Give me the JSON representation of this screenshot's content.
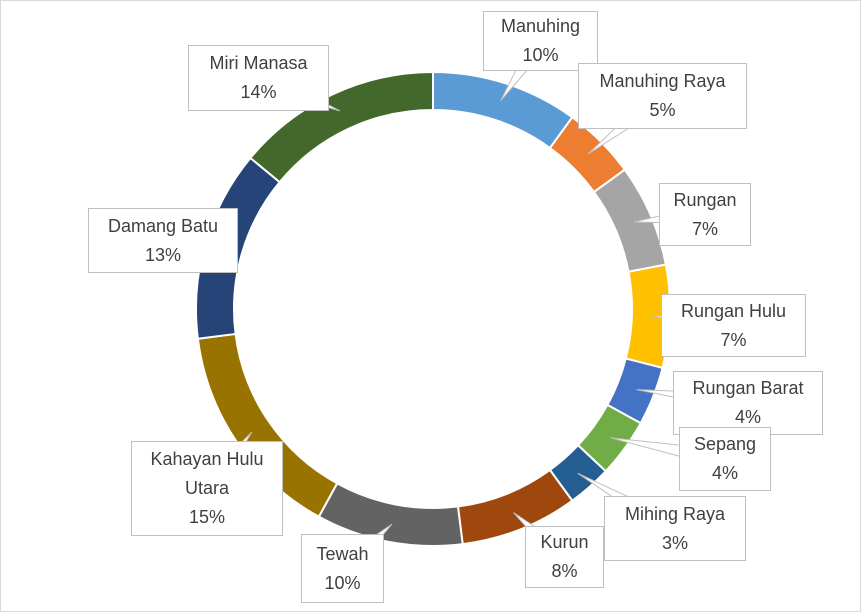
{
  "chart_data": {
    "type": "donut",
    "categories": [
      "Manuhing",
      "Manuhing Raya",
      "Rungan",
      "Rungan Hulu",
      "Rungan Barat",
      "Sepang",
      "Mihing Raya",
      "Kurun",
      "Tewah",
      "Kahayan Hulu Utara",
      "Damang Batu",
      "Miri Manasa"
    ],
    "values": [
      10,
      5,
      7,
      7,
      4,
      4,
      3,
      8,
      10,
      15,
      13,
      14
    ],
    "value_labels": [
      "10%",
      "5%",
      "7%",
      "7%",
      "4%",
      "4%",
      "3%",
      "8%",
      "10%",
      "15%",
      "13%",
      "14%"
    ],
    "colors": [
      "#5b9bd5",
      "#ed7d31",
      "#a5a5a5",
      "#ffc000",
      "#4472c4",
      "#70ad47",
      "#255e91",
      "#9e480e",
      "#636363",
      "#997300",
      "#264478",
      "#43682b"
    ]
  }
}
